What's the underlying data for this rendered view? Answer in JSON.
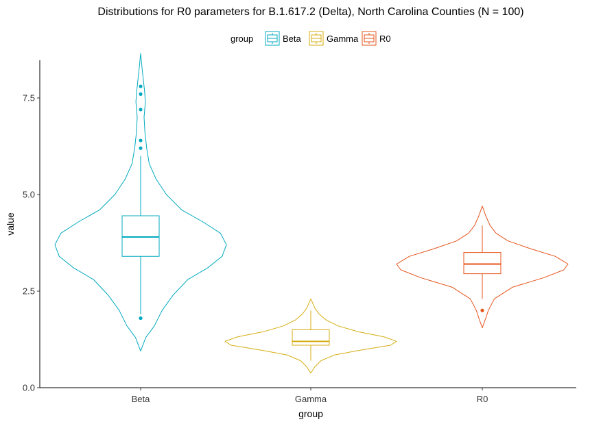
{
  "chart_data": {
    "type": "violin",
    "title": "Distributions for R0 parameters for B.1.617.2 (Delta), North Carolina Counties (N = 100)",
    "xlabel": "group",
    "ylabel": "value",
    "ylim": [
      0,
      8.8
    ],
    "y_ticks": [
      0.0,
      2.5,
      5.0,
      7.5
    ],
    "y_tick_labels": [
      "0.0",
      "2.5",
      "5.0",
      "7.5"
    ],
    "grid": false,
    "legend": {
      "title": "group",
      "position": "top",
      "entries": [
        "Beta",
        "Gamma",
        "R0"
      ]
    },
    "categories": [
      "Beta",
      "Gamma",
      "R0"
    ],
    "groups": [
      {
        "name": "Beta",
        "color": "#00A9BF",
        "box": {
          "q1": 3.4,
          "median": 3.9,
          "q3": 4.45,
          "whisker_low": 1.9,
          "whisker_high": 6.0
        },
        "outliers": [
          1.8,
          6.2,
          6.4,
          7.2,
          7.6,
          7.8
        ],
        "density_profile": [
          [
            0.95,
            0.0
          ],
          [
            1.3,
            0.06
          ],
          [
            1.6,
            0.16
          ],
          [
            2.0,
            0.25
          ],
          [
            2.4,
            0.38
          ],
          [
            2.8,
            0.55
          ],
          [
            3.1,
            0.78
          ],
          [
            3.4,
            0.95
          ],
          [
            3.7,
            1.0
          ],
          [
            4.0,
            0.93
          ],
          [
            4.3,
            0.72
          ],
          [
            4.6,
            0.48
          ],
          [
            5.0,
            0.3
          ],
          [
            5.4,
            0.18
          ],
          [
            5.8,
            0.1
          ],
          [
            6.2,
            0.07
          ],
          [
            6.6,
            0.05
          ],
          [
            7.0,
            0.04
          ],
          [
            7.4,
            0.055
          ],
          [
            7.7,
            0.045
          ],
          [
            8.2,
            0.02
          ],
          [
            8.65,
            0.0
          ]
        ]
      },
      {
        "name": "Gamma",
        "color": "#D4AC0D",
        "box": {
          "q1": 1.1,
          "median": 1.2,
          "q3": 1.5,
          "whisker_low": 0.7,
          "whisker_high": 2.0
        },
        "outliers": [],
        "density_profile": [
          [
            0.38,
            0.0
          ],
          [
            0.55,
            0.05
          ],
          [
            0.7,
            0.12
          ],
          [
            0.85,
            0.28
          ],
          [
            0.98,
            0.6
          ],
          [
            1.1,
            0.93
          ],
          [
            1.2,
            1.0
          ],
          [
            1.32,
            0.85
          ],
          [
            1.45,
            0.55
          ],
          [
            1.6,
            0.32
          ],
          [
            1.75,
            0.18
          ],
          [
            1.9,
            0.1
          ],
          [
            2.05,
            0.05
          ],
          [
            2.3,
            0.0
          ]
        ]
      },
      {
        "name": "R0",
        "color": "#E5531A",
        "box": {
          "q1": 2.95,
          "median": 3.2,
          "q3": 3.5,
          "whisker_low": 2.3,
          "whisker_high": 4.2
        },
        "outliers": [
          2.0
        ],
        "density_profile": [
          [
            1.55,
            0.0
          ],
          [
            1.8,
            0.04
          ],
          [
            2.0,
            0.07
          ],
          [
            2.3,
            0.14
          ],
          [
            2.6,
            0.35
          ],
          [
            2.85,
            0.72
          ],
          [
            3.05,
            0.95
          ],
          [
            3.2,
            1.0
          ],
          [
            3.4,
            0.85
          ],
          [
            3.6,
            0.56
          ],
          [
            3.8,
            0.3
          ],
          [
            4.0,
            0.16
          ],
          [
            4.2,
            0.09
          ],
          [
            4.45,
            0.04
          ],
          [
            4.7,
            0.0
          ]
        ]
      }
    ]
  }
}
